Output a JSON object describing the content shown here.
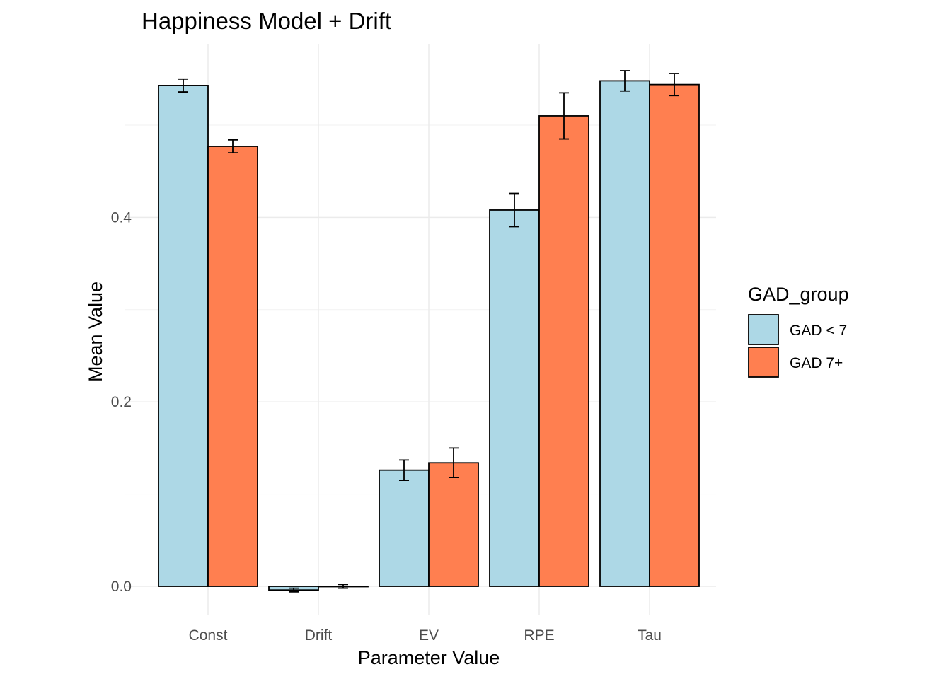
{
  "chart_data": {
    "type": "bar",
    "title": "Happiness Model + Drift",
    "xlabel": "Parameter Value",
    "ylabel": "Mean Value",
    "categories": [
      "Const",
      "Drift",
      "EV",
      "RPE",
      "Tau"
    ],
    "ylim": [
      -0.04,
      0.59
    ],
    "yticks": [
      0.0,
      0.2,
      0.4
    ],
    "ytick_labels": [
      "0.0",
      "0.2",
      "0.4"
    ],
    "grid": true,
    "legend": {
      "title": "GAD_group",
      "position": "right"
    },
    "series": [
      {
        "name": "GAD < 7",
        "color": "#ADD8E6",
        "values": [
          0.543,
          -0.004,
          0.126,
          0.408,
          0.548
        ],
        "error_low": [
          0.536,
          -0.006,
          0.115,
          0.39,
          0.537
        ],
        "error_high": [
          0.55,
          -0.002,
          0.137,
          0.426,
          0.559
        ]
      },
      {
        "name": "GAD 7+",
        "color": "#FF7F50",
        "values": [
          0.477,
          0.0,
          0.134,
          0.51,
          0.544
        ],
        "error_low": [
          0.47,
          -0.002,
          0.118,
          0.485,
          0.532
        ],
        "error_high": [
          0.484,
          0.002,
          0.15,
          0.535,
          0.556
        ]
      }
    ]
  }
}
